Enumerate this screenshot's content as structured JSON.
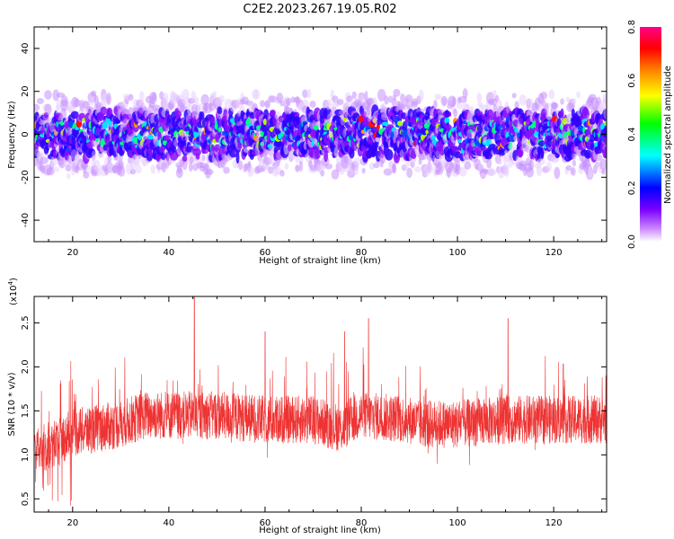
{
  "title": "C2E2.2023.267.19.05.R02",
  "chart_data": [
    {
      "type": "heatmap",
      "xlabel": "Height of straight line (km)",
      "ylabel": "Frequency (Hz)",
      "xlim": [
        12,
        131
      ],
      "ylim": [
        -50,
        50
      ],
      "xticks": [
        20,
        40,
        60,
        80,
        100,
        120
      ],
      "yticks": [
        -40,
        -20,
        0,
        20,
        40
      ],
      "value_band": {
        "center_hz": 0,
        "core_halfwidth_hz": 6,
        "outer_halfwidth_hz": 18
      },
      "colorbar": {
        "label": "Normalized spectral amplitude",
        "range": [
          0,
          0.8
        ],
        "ticks": [
          0.0,
          0.2,
          0.4,
          0.6,
          0.8
        ],
        "colormap": [
          "#ffffff",
          "#8800ff",
          "#0000ff",
          "#00ffff",
          "#00ff00",
          "#ffff00",
          "#ff8000",
          "#ff0000",
          "#ff0088"
        ]
      }
    },
    {
      "type": "line",
      "xlabel": "Height of straight line (km)",
      "ylabel": "SNR (10 * v/v)",
      "exponent_label": "(x10",
      "exponent_power": "4",
      "exponent_close": ")",
      "xlim": [
        12,
        131
      ],
      "ylim": [
        0.35,
        2.8
      ],
      "xticks": [
        20,
        40,
        60,
        80,
        100,
        120
      ],
      "yticks": [
        0.5,
        1.0,
        1.5,
        2.0,
        2.5
      ],
      "ytick_labels": [
        "0.5",
        "1.0",
        "1.5",
        "2.0",
        "2.5"
      ],
      "line_color": "#ee3333",
      "baseline_profile": {
        "x": [
          12,
          15,
          20,
          30,
          35,
          40,
          50,
          60,
          70,
          76,
          78,
          80,
          90,
          92,
          100,
          110,
          120,
          131
        ],
        "y": [
          1.05,
          1.1,
          1.25,
          1.35,
          1.45,
          1.45,
          1.45,
          1.4,
          1.4,
          1.3,
          1.4,
          1.45,
          1.4,
          1.35,
          1.35,
          1.4,
          1.4,
          1.4
        ]
      },
      "notable_peaks": [
        {
          "x": 45.3,
          "y": 2.8
        },
        {
          "x": 60.0,
          "y": 2.4
        },
        {
          "x": 76.5,
          "y": 2.4
        },
        {
          "x": 81.5,
          "y": 2.55
        },
        {
          "x": 110.5,
          "y": 2.55
        }
      ]
    }
  ]
}
